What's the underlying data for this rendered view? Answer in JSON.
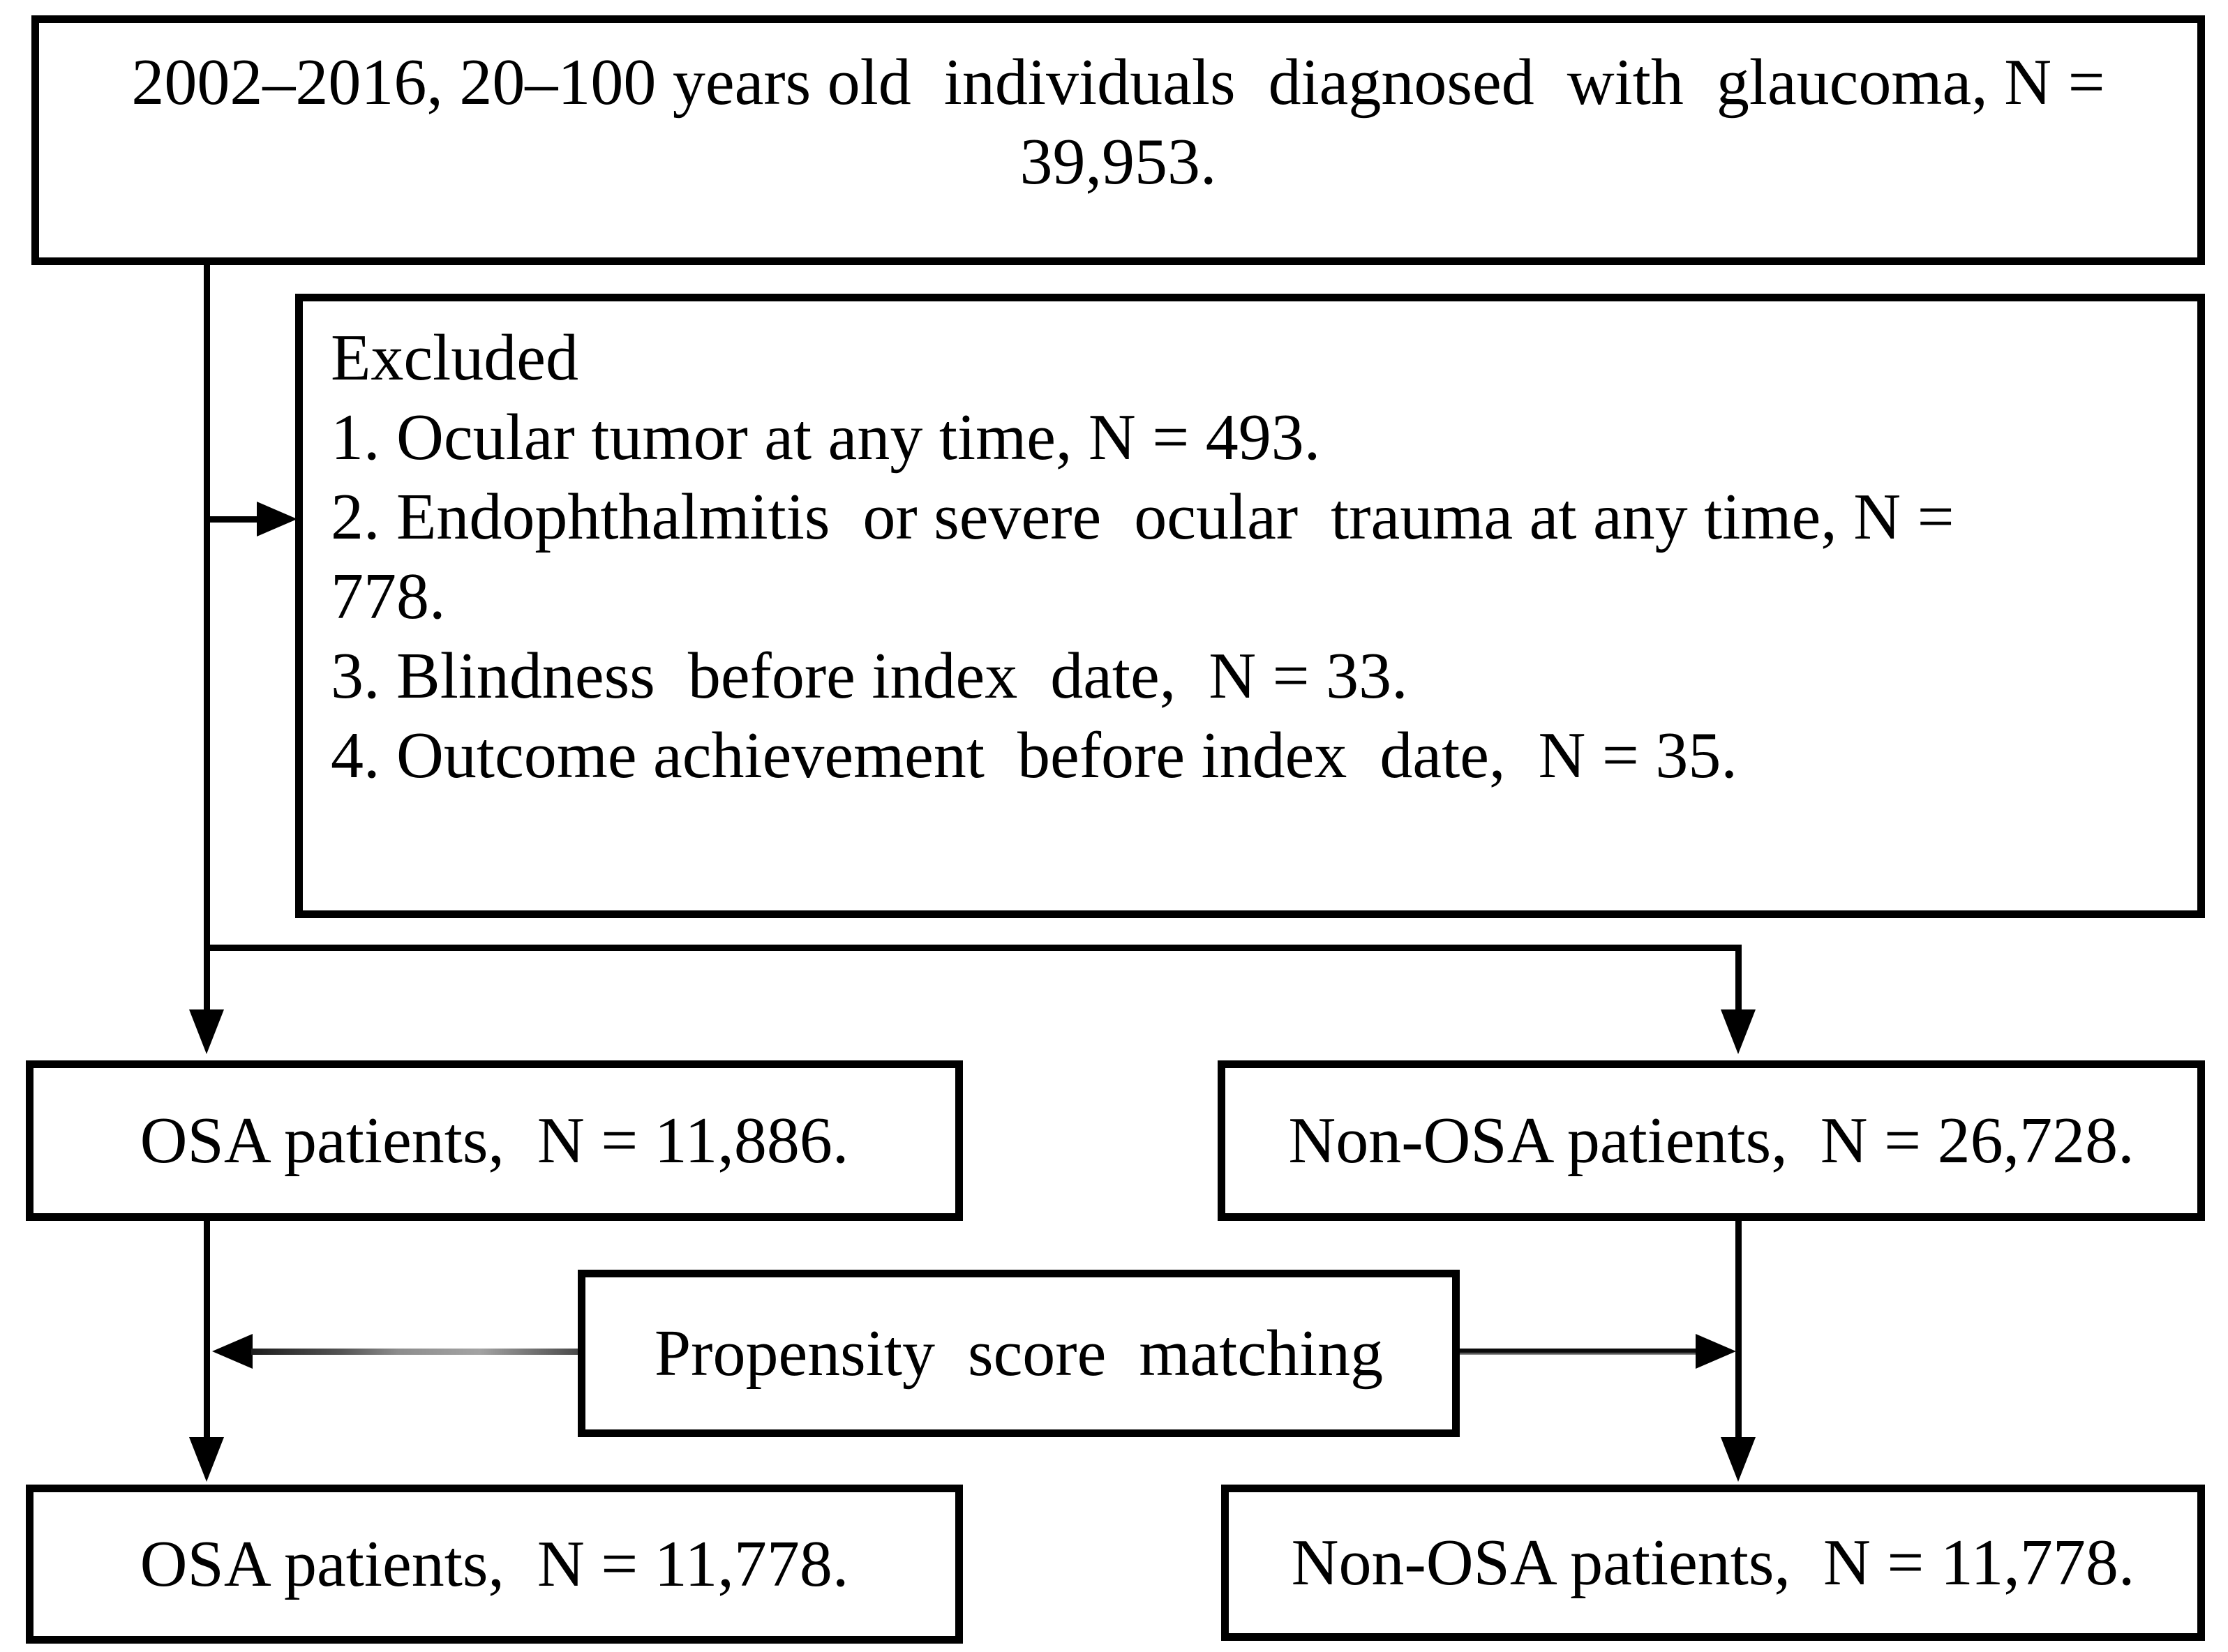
{
  "diagram": {
    "population_box": {
      "line1": "2002–2016, 20–100 years old  individuals  diagnosed  with  glaucoma, N =",
      "line2": "39,953."
    },
    "excluded_box": {
      "title": "Excluded",
      "items": [
        "1. Ocular tumor at any time, N = 493.",
        "2. Endophthalmitis  or severe  ocular  trauma at any time, N =",
        "778.",
        "3. Blindness  before index  date,  N = 33.",
        "4. Outcome achievement  before index  date,  N = 35."
      ]
    },
    "osa_box": {
      "label": "OSA patients,  N = 11,886."
    },
    "non_osa_box": {
      "label": "Non-OSA patients,  N = 26,728."
    },
    "matching_box": {
      "label": "Propensity  score  matching"
    },
    "osa_matched_box": {
      "label": "OSA patients,  N = 11,778."
    },
    "non_osa_matched_box": {
      "label": "Non-OSA patients,  N = 11,778."
    },
    "colors": {
      "line": "#000000",
      "background": "#ffffff",
      "text": "#000000"
    }
  }
}
